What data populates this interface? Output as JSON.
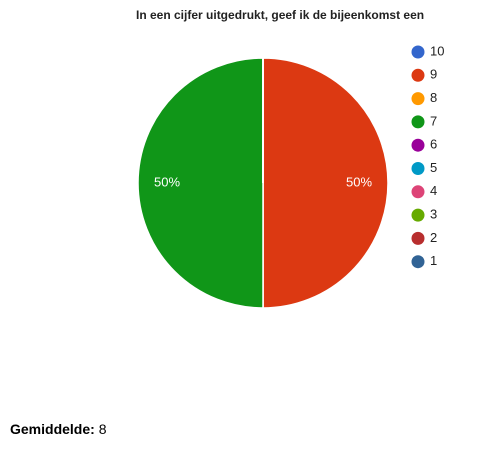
{
  "chart_data": {
    "type": "pie",
    "title": "In een cijfer uitgedrukt, geef ik de bijeenkomst een",
    "categories": [
      "10",
      "9",
      "8",
      "7",
      "6",
      "5",
      "4",
      "3",
      "2",
      "1"
    ],
    "values": [
      0,
      50,
      0,
      50,
      0,
      0,
      0,
      0,
      0,
      0
    ],
    "value_labels": [
      null,
      "50%",
      null,
      "50%",
      null,
      null,
      null,
      null,
      null,
      null
    ],
    "colors": [
      "#3366cc",
      "#dc3912",
      "#ff9900",
      "#109618",
      "#990099",
      "#0099c6",
      "#dd4477",
      "#66aa00",
      "#b82e2e",
      "#316395"
    ],
    "legend": "right"
  },
  "summary": {
    "label": "Gemiddelde:",
    "value": 8
  }
}
